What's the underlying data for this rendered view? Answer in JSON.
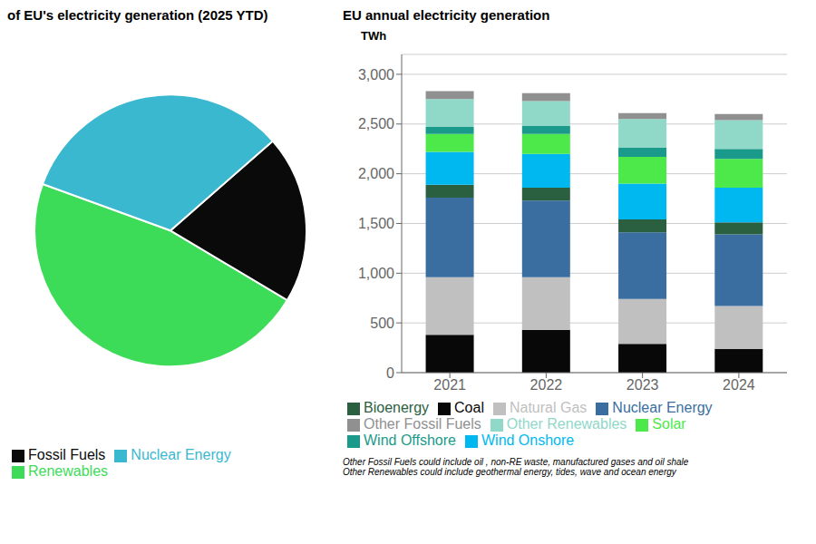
{
  "chart_data": [
    {
      "type": "pie",
      "title": "of EU's electricity generation (2025 YTD)",
      "categories": [
        "Renewables",
        "Fossil Fuels",
        "Nuclear Energy"
      ],
      "values": [
        47,
        20,
        33
      ],
      "colors": [
        "#3ddc58",
        "#0a0a0a",
        "#3ab8d0"
      ],
      "legend": "lower left"
    },
    {
      "type": "bar",
      "title": "EU annual electricity generation",
      "y_label": "TWh",
      "stacked": true,
      "categories": [
        "2021",
        "2022",
        "2023",
        "2024"
      ],
      "series": [
        {
          "name": "Coal",
          "color": "#080808",
          "values": [
            380,
            430,
            290,
            240
          ]
        },
        {
          "name": "Natural Gas",
          "color": "#c0c0c0",
          "values": [
            580,
            530,
            450,
            430
          ]
        },
        {
          "name": "Nuclear Energy",
          "color": "#3a6ea0",
          "values": [
            800,
            770,
            670,
            720
          ]
        },
        {
          "name": "Bioenergy",
          "color": "#2a6040",
          "values": [
            130,
            130,
            130,
            120
          ]
        },
        {
          "name": "Wind Onshore",
          "color": "#00b8f0",
          "values": [
            330,
            340,
            360,
            350
          ]
        },
        {
          "name": "Solar",
          "color": "#4de84a",
          "values": [
            180,
            200,
            270,
            290
          ]
        },
        {
          "name": "Wind Offshore",
          "color": "#1a9a8a",
          "values": [
            70,
            80,
            90,
            100
          ]
        },
        {
          "name": "Other Renewables",
          "color": "#90d8c8",
          "values": [
            280,
            250,
            290,
            290
          ]
        },
        {
          "name": "Other Fossil Fuels",
          "color": "#909090",
          "values": [
            80,
            80,
            60,
            60
          ]
        }
      ],
      "ylim": [
        0,
        3200
      ],
      "yticks": [
        0,
        500,
        {
          "value": 1000,
          "label": "1,000"
        },
        {
          "value": 1500,
          "label": "1,500"
        },
        {
          "value": 2000,
          "label": "2,000"
        },
        {
          "value": 2500,
          "label": "2,500"
        },
        {
          "value": 3000,
          "label": "3,000"
        }
      ],
      "grid": true,
      "legend": "lower left",
      "annotations": [
        "Other Fossil Fuels could include oil , non-RE waste, manufactured gases and oil shale",
        "Other Renewables could include geothermal energy, tides, wave and ocean energy"
      ]
    }
  ]
}
